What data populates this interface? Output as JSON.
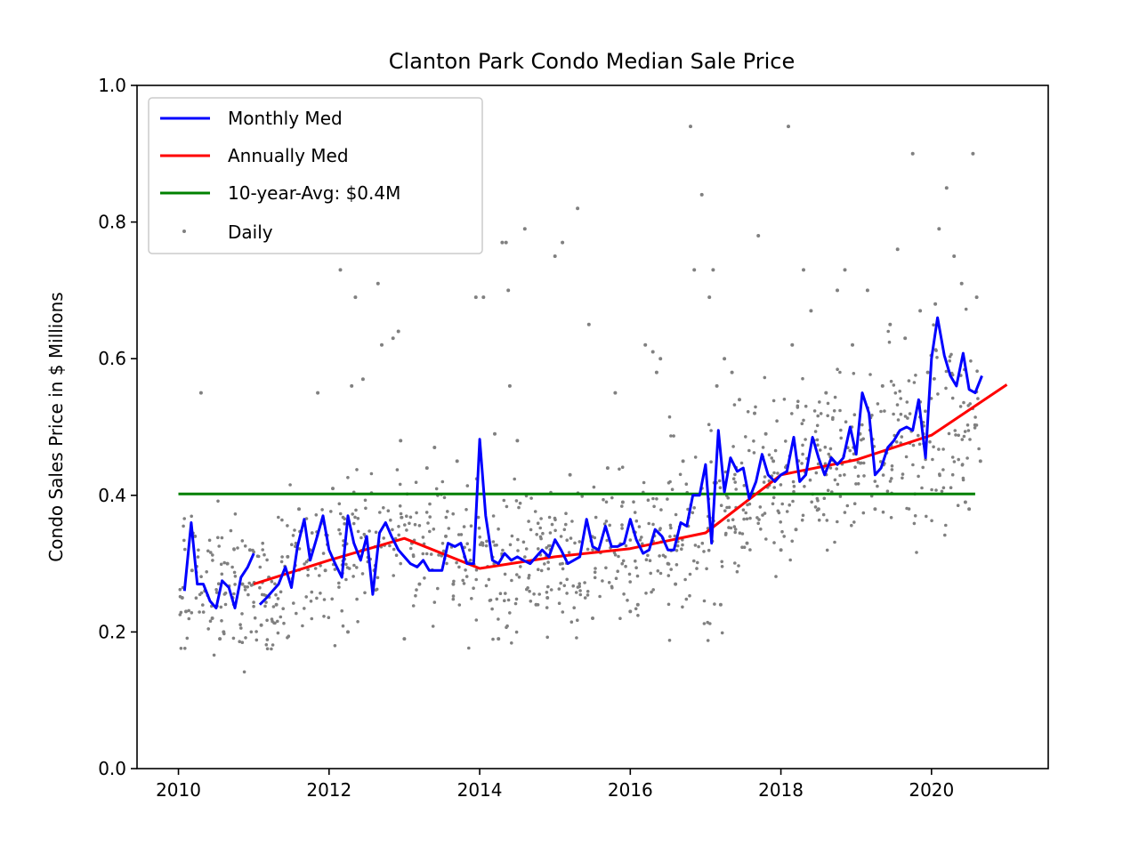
{
  "chart_data": {
    "type": "line",
    "title": "Clanton Park Condo Median Sale Price",
    "xlabel": "",
    "ylabel": "Condo Sales Price in $ Millions",
    "xlim": [
      2009.45,
      2021.55
    ],
    "ylim": [
      0.0,
      1.0
    ],
    "xticks": [
      2010,
      2012,
      2014,
      2016,
      2018,
      2020
    ],
    "yticks": [
      0.0,
      0.2,
      0.4,
      0.6,
      0.8,
      1.0
    ],
    "grid": false,
    "legend_position": "upper-left",
    "colors": {
      "monthly": "#0000ff",
      "annual": "#ff0000",
      "avg": "#008000",
      "daily": "#808080"
    },
    "series": [
      {
        "name": "Monthly Med",
        "color": "#0000ff",
        "segments": [
          [
            [
              2010.08,
              0.26
            ],
            [
              2010.17,
              0.36
            ],
            [
              2010.25,
              0.27
            ],
            [
              2010.33,
              0.27
            ],
            [
              2010.42,
              0.245
            ],
            [
              2010.5,
              0.235
            ],
            [
              2010.58,
              0.275
            ],
            [
              2010.67,
              0.265
            ],
            [
              2010.75,
              0.235
            ],
            [
              2010.83,
              0.28
            ],
            [
              2010.92,
              0.295
            ],
            [
              2011.0,
              0.315
            ]
          ],
          [
            [
              2011.08,
              0.24
            ],
            [
              2011.17,
              0.25
            ],
            [
              2011.25,
              0.26
            ],
            [
              2011.33,
              0.27
            ],
            [
              2011.42,
              0.295
            ],
            [
              2011.5,
              0.265
            ],
            [
              2011.58,
              0.325
            ],
            [
              2011.67,
              0.365
            ],
            [
              2011.75,
              0.305
            ],
            [
              2011.83,
              0.335
            ],
            [
              2011.92,
              0.37
            ],
            [
              2012.0,
              0.32
            ],
            [
              2012.08,
              0.3
            ],
            [
              2012.17,
              0.28
            ],
            [
              2012.25,
              0.37
            ],
            [
              2012.33,
              0.33
            ],
            [
              2012.42,
              0.305
            ],
            [
              2012.5,
              0.34
            ],
            [
              2012.58,
              0.255
            ],
            [
              2012.67,
              0.345
            ],
            [
              2012.75,
              0.36
            ],
            [
              2012.83,
              0.34
            ],
            [
              2012.92,
              0.32
            ],
            [
              2013.0,
              0.31
            ],
            [
              2013.08,
              0.3
            ],
            [
              2013.17,
              0.295
            ],
            [
              2013.25,
              0.305
            ],
            [
              2013.33,
              0.29
            ],
            [
              2013.42,
              0.29
            ],
            [
              2013.5,
              0.29
            ],
            [
              2013.58,
              0.33
            ],
            [
              2013.67,
              0.325
            ],
            [
              2013.75,
              0.33
            ],
            [
              2013.83,
              0.3
            ],
            [
              2013.92,
              0.3
            ],
            [
              2014.0,
              0.482
            ],
            [
              2014.08,
              0.37
            ],
            [
              2014.17,
              0.305
            ],
            [
              2014.25,
              0.3
            ],
            [
              2014.33,
              0.315
            ],
            [
              2014.42,
              0.305
            ],
            [
              2014.5,
              0.31
            ],
            [
              2014.58,
              0.305
            ],
            [
              2014.67,
              0.3
            ],
            [
              2014.75,
              0.31
            ],
            [
              2014.83,
              0.32
            ],
            [
              2014.92,
              0.31
            ],
            [
              2015.0,
              0.335
            ],
            [
              2015.08,
              0.32
            ],
            [
              2015.17,
              0.3
            ],
            [
              2015.25,
              0.305
            ],
            [
              2015.33,
              0.31
            ],
            [
              2015.42,
              0.365
            ],
            [
              2015.5,
              0.325
            ],
            [
              2015.58,
              0.32
            ],
            [
              2015.67,
              0.355
            ],
            [
              2015.75,
              0.325
            ],
            [
              2015.83,
              0.325
            ],
            [
              2015.92,
              0.33
            ],
            [
              2016.0,
              0.365
            ],
            [
              2016.08,
              0.335
            ],
            [
              2016.17,
              0.315
            ],
            [
              2016.25,
              0.32
            ],
            [
              2016.33,
              0.35
            ],
            [
              2016.42,
              0.34
            ],
            [
              2016.5,
              0.32
            ],
            [
              2016.58,
              0.32
            ],
            [
              2016.67,
              0.36
            ],
            [
              2016.75,
              0.355
            ],
            [
              2016.83,
              0.4
            ],
            [
              2016.92,
              0.4
            ],
            [
              2017.0,
              0.445
            ],
            [
              2017.08,
              0.33
            ],
            [
              2017.17,
              0.495
            ],
            [
              2017.25,
              0.405
            ],
            [
              2017.33,
              0.455
            ],
            [
              2017.42,
              0.435
            ],
            [
              2017.5,
              0.44
            ],
            [
              2017.58,
              0.395
            ],
            [
              2017.67,
              0.42
            ],
            [
              2017.75,
              0.46
            ],
            [
              2017.83,
              0.43
            ],
            [
              2017.92,
              0.42
            ],
            [
              2018.0,
              0.43
            ],
            [
              2018.08,
              0.435
            ],
            [
              2018.17,
              0.485
            ],
            [
              2018.25,
              0.42
            ],
            [
              2018.33,
              0.43
            ],
            [
              2018.42,
              0.485
            ],
            [
              2018.5,
              0.455
            ],
            [
              2018.58,
              0.43
            ],
            [
              2018.67,
              0.455
            ],
            [
              2018.75,
              0.445
            ],
            [
              2018.83,
              0.455
            ],
            [
              2018.92,
              0.5
            ],
            [
              2019.0,
              0.46
            ],
            [
              2019.08,
              0.55
            ],
            [
              2019.17,
              0.52
            ],
            [
              2019.25,
              0.43
            ],
            [
              2019.33,
              0.44
            ],
            [
              2019.42,
              0.47
            ],
            [
              2019.5,
              0.48
            ],
            [
              2019.58,
              0.495
            ],
            [
              2019.67,
              0.5
            ],
            [
              2019.75,
              0.495
            ],
            [
              2019.83,
              0.54
            ],
            [
              2019.92,
              0.455
            ],
            [
              2020.0,
              0.6
            ],
            [
              2020.08,
              0.66
            ],
            [
              2020.17,
              0.605
            ],
            [
              2020.25,
              0.575
            ],
            [
              2020.33,
              0.56
            ],
            [
              2020.42,
              0.608
            ],
            [
              2020.5,
              0.555
            ],
            [
              2020.58,
              0.55
            ],
            [
              2020.67,
              0.575
            ]
          ]
        ]
      },
      {
        "name": "Annually Med",
        "color": "#ff0000",
        "points": [
          [
            2011.0,
            0.27
          ],
          [
            2012.0,
            0.305
          ],
          [
            2013.0,
            0.337
          ],
          [
            2014.0,
            0.293
          ],
          [
            2015.0,
            0.31
          ],
          [
            2016.0,
            0.322
          ],
          [
            2017.0,
            0.345
          ],
          [
            2018.0,
            0.43
          ],
          [
            2019.0,
            0.452
          ],
          [
            2020.0,
            0.488
          ],
          [
            2021.0,
            0.562
          ]
        ]
      },
      {
        "name": "10-year-Avg: $0.4M",
        "color": "#008000",
        "points": [
          [
            2010.0,
            0.402
          ],
          [
            2020.58,
            0.402
          ]
        ]
      },
      {
        "name": "Daily",
        "color": "#808080",
        "style": "scatter",
        "points": [
          [
            2010.05,
            0.25
          ],
          [
            2010.1,
            0.23
          ],
          [
            2010.18,
            0.29
          ],
          [
            2010.22,
            0.34
          ],
          [
            2010.3,
            0.55
          ],
          [
            2010.35,
            0.26
          ],
          [
            2010.45,
            0.22
          ],
          [
            2010.55,
            0.19
          ],
          [
            2010.6,
            0.2
          ],
          [
            2010.65,
            0.3
          ],
          [
            2010.72,
            0.25
          ],
          [
            2010.85,
            0.27
          ],
          [
            2010.95,
            0.32
          ],
          [
            2011.1,
            0.21
          ],
          [
            2011.2,
            0.28
          ],
          [
            2011.3,
            0.24
          ],
          [
            2011.45,
            0.31
          ],
          [
            2011.6,
            0.38
          ],
          [
            2011.75,
            0.32
          ],
          [
            2011.85,
            0.55
          ],
          [
            2011.95,
            0.29
          ],
          [
            2012.05,
            0.41
          ],
          [
            2012.15,
            0.73
          ],
          [
            2012.25,
            0.2
          ],
          [
            2012.3,
            0.56
          ],
          [
            2012.35,
            0.69
          ],
          [
            2012.45,
            0.57
          ],
          [
            2012.6,
            0.29
          ],
          [
            2012.65,
            0.71
          ],
          [
            2012.7,
            0.62
          ],
          [
            2012.85,
            0.63
          ],
          [
            2012.92,
            0.64
          ],
          [
            2012.95,
            0.48
          ],
          [
            2013.0,
            0.19
          ],
          [
            2013.1,
            0.33
          ],
          [
            2013.2,
            0.27
          ],
          [
            2013.3,
            0.44
          ],
          [
            2013.4,
            0.47
          ],
          [
            2013.55,
            0.34
          ],
          [
            2013.65,
            0.27
          ],
          [
            2013.7,
            0.45
          ],
          [
            2013.8,
            0.31
          ],
          [
            2013.95,
            0.69
          ],
          [
            2014.05,
            0.69
          ],
          [
            2014.2,
            0.49
          ],
          [
            2014.25,
            0.19
          ],
          [
            2014.3,
            0.77
          ],
          [
            2014.35,
            0.77
          ],
          [
            2014.38,
            0.7
          ],
          [
            2014.4,
            0.56
          ],
          [
            2014.5,
            0.48
          ],
          [
            2014.6,
            0.79
          ],
          [
            2014.75,
            0.24
          ],
          [
            2014.9,
            0.25
          ],
          [
            2015.0,
            0.75
          ],
          [
            2015.1,
            0.77
          ],
          [
            2015.2,
            0.43
          ],
          [
            2015.3,
            0.82
          ],
          [
            2015.45,
            0.65
          ],
          [
            2015.5,
            0.22
          ],
          [
            2015.7,
            0.44
          ],
          [
            2015.8,
            0.55
          ],
          [
            2015.9,
            0.39
          ],
          [
            2016.0,
            0.23
          ],
          [
            2016.1,
            0.24
          ],
          [
            2016.2,
            0.62
          ],
          [
            2016.3,
            0.61
          ],
          [
            2016.35,
            0.58
          ],
          [
            2016.4,
            0.6
          ],
          [
            2016.5,
            0.3
          ],
          [
            2016.6,
            0.27
          ],
          [
            2016.7,
            0.45
          ],
          [
            2016.8,
            0.94
          ],
          [
            2016.85,
            0.73
          ],
          [
            2016.95,
            0.84
          ],
          [
            2017.05,
            0.69
          ],
          [
            2017.1,
            0.73
          ],
          [
            2017.15,
            0.56
          ],
          [
            2017.2,
            0.24
          ],
          [
            2017.25,
            0.6
          ],
          [
            2017.35,
            0.58
          ],
          [
            2017.45,
            0.54
          ],
          [
            2017.55,
            0.33
          ],
          [
            2017.65,
            0.52
          ],
          [
            2017.7,
            0.78
          ],
          [
            2017.8,
            0.49
          ],
          [
            2017.9,
            0.45
          ],
          [
            2018.0,
            0.32
          ],
          [
            2018.1,
            0.94
          ],
          [
            2018.15,
            0.62
          ],
          [
            2018.2,
            0.35
          ],
          [
            2018.3,
            0.73
          ],
          [
            2018.4,
            0.67
          ],
          [
            2018.5,
            0.38
          ],
          [
            2018.6,
            0.55
          ],
          [
            2018.75,
            0.7
          ],
          [
            2018.85,
            0.73
          ],
          [
            2018.95,
            0.62
          ],
          [
            2019.05,
            0.49
          ],
          [
            2019.15,
            0.7
          ],
          [
            2019.25,
            0.38
          ],
          [
            2019.35,
            0.56
          ],
          [
            2019.45,
            0.65
          ],
          [
            2019.55,
            0.76
          ],
          [
            2019.65,
            0.63
          ],
          [
            2019.75,
            0.9
          ],
          [
            2019.85,
            0.67
          ],
          [
            2019.95,
            0.58
          ],
          [
            2020.05,
            0.68
          ],
          [
            2020.1,
            0.79
          ],
          [
            2020.2,
            0.85
          ],
          [
            2020.3,
            0.75
          ],
          [
            2020.4,
            0.71
          ],
          [
            2020.45,
            0.39
          ],
          [
            2020.5,
            0.38
          ],
          [
            2020.55,
            0.9
          ],
          [
            2020.6,
            0.69
          ],
          [
            2020.65,
            0.45
          ]
        ]
      }
    ]
  }
}
